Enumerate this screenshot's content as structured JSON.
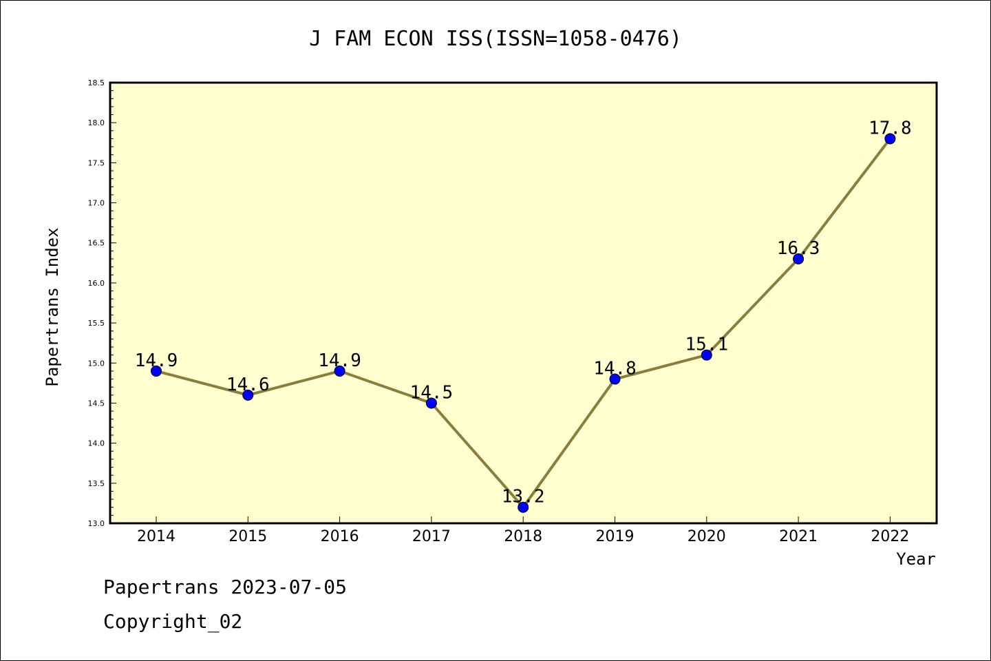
{
  "chart_data": {
    "type": "line",
    "title": "J FAM ECON ISS(ISSN=1058-0476)",
    "xlabel": "Year",
    "ylabel": "Papertrans Index",
    "categories": [
      "2014",
      "2015",
      "2016",
      "2017",
      "2018",
      "2019",
      "2020",
      "2021",
      "2022"
    ],
    "series": [
      {
        "values": [
          14.9,
          14.6,
          14.9,
          14.5,
          13.2,
          14.8,
          15.1,
          16.3,
          17.8
        ],
        "data_labels": [
          "14.9",
          "14.6",
          "14.9",
          "14.5",
          "13.2",
          "14.8",
          "15.1",
          "16.3",
          "17.8"
        ]
      }
    ],
    "ylim": [
      13.0,
      18.5
    ],
    "yticks": [
      "13.0",
      "13.5",
      "14.0",
      "14.5",
      "15.0",
      "15.5",
      "16.0",
      "16.5",
      "17.0",
      "17.5",
      "18.0",
      "18.5"
    ],
    "grid": false,
    "legend": "none",
    "colors": {
      "plot_background": "#ffffd0",
      "line": "#8b7d3a",
      "marker": "#0000ff"
    }
  },
  "footer": {
    "date_line": "Papertrans 2023-07-05",
    "copyright": "Copyright_02"
  }
}
